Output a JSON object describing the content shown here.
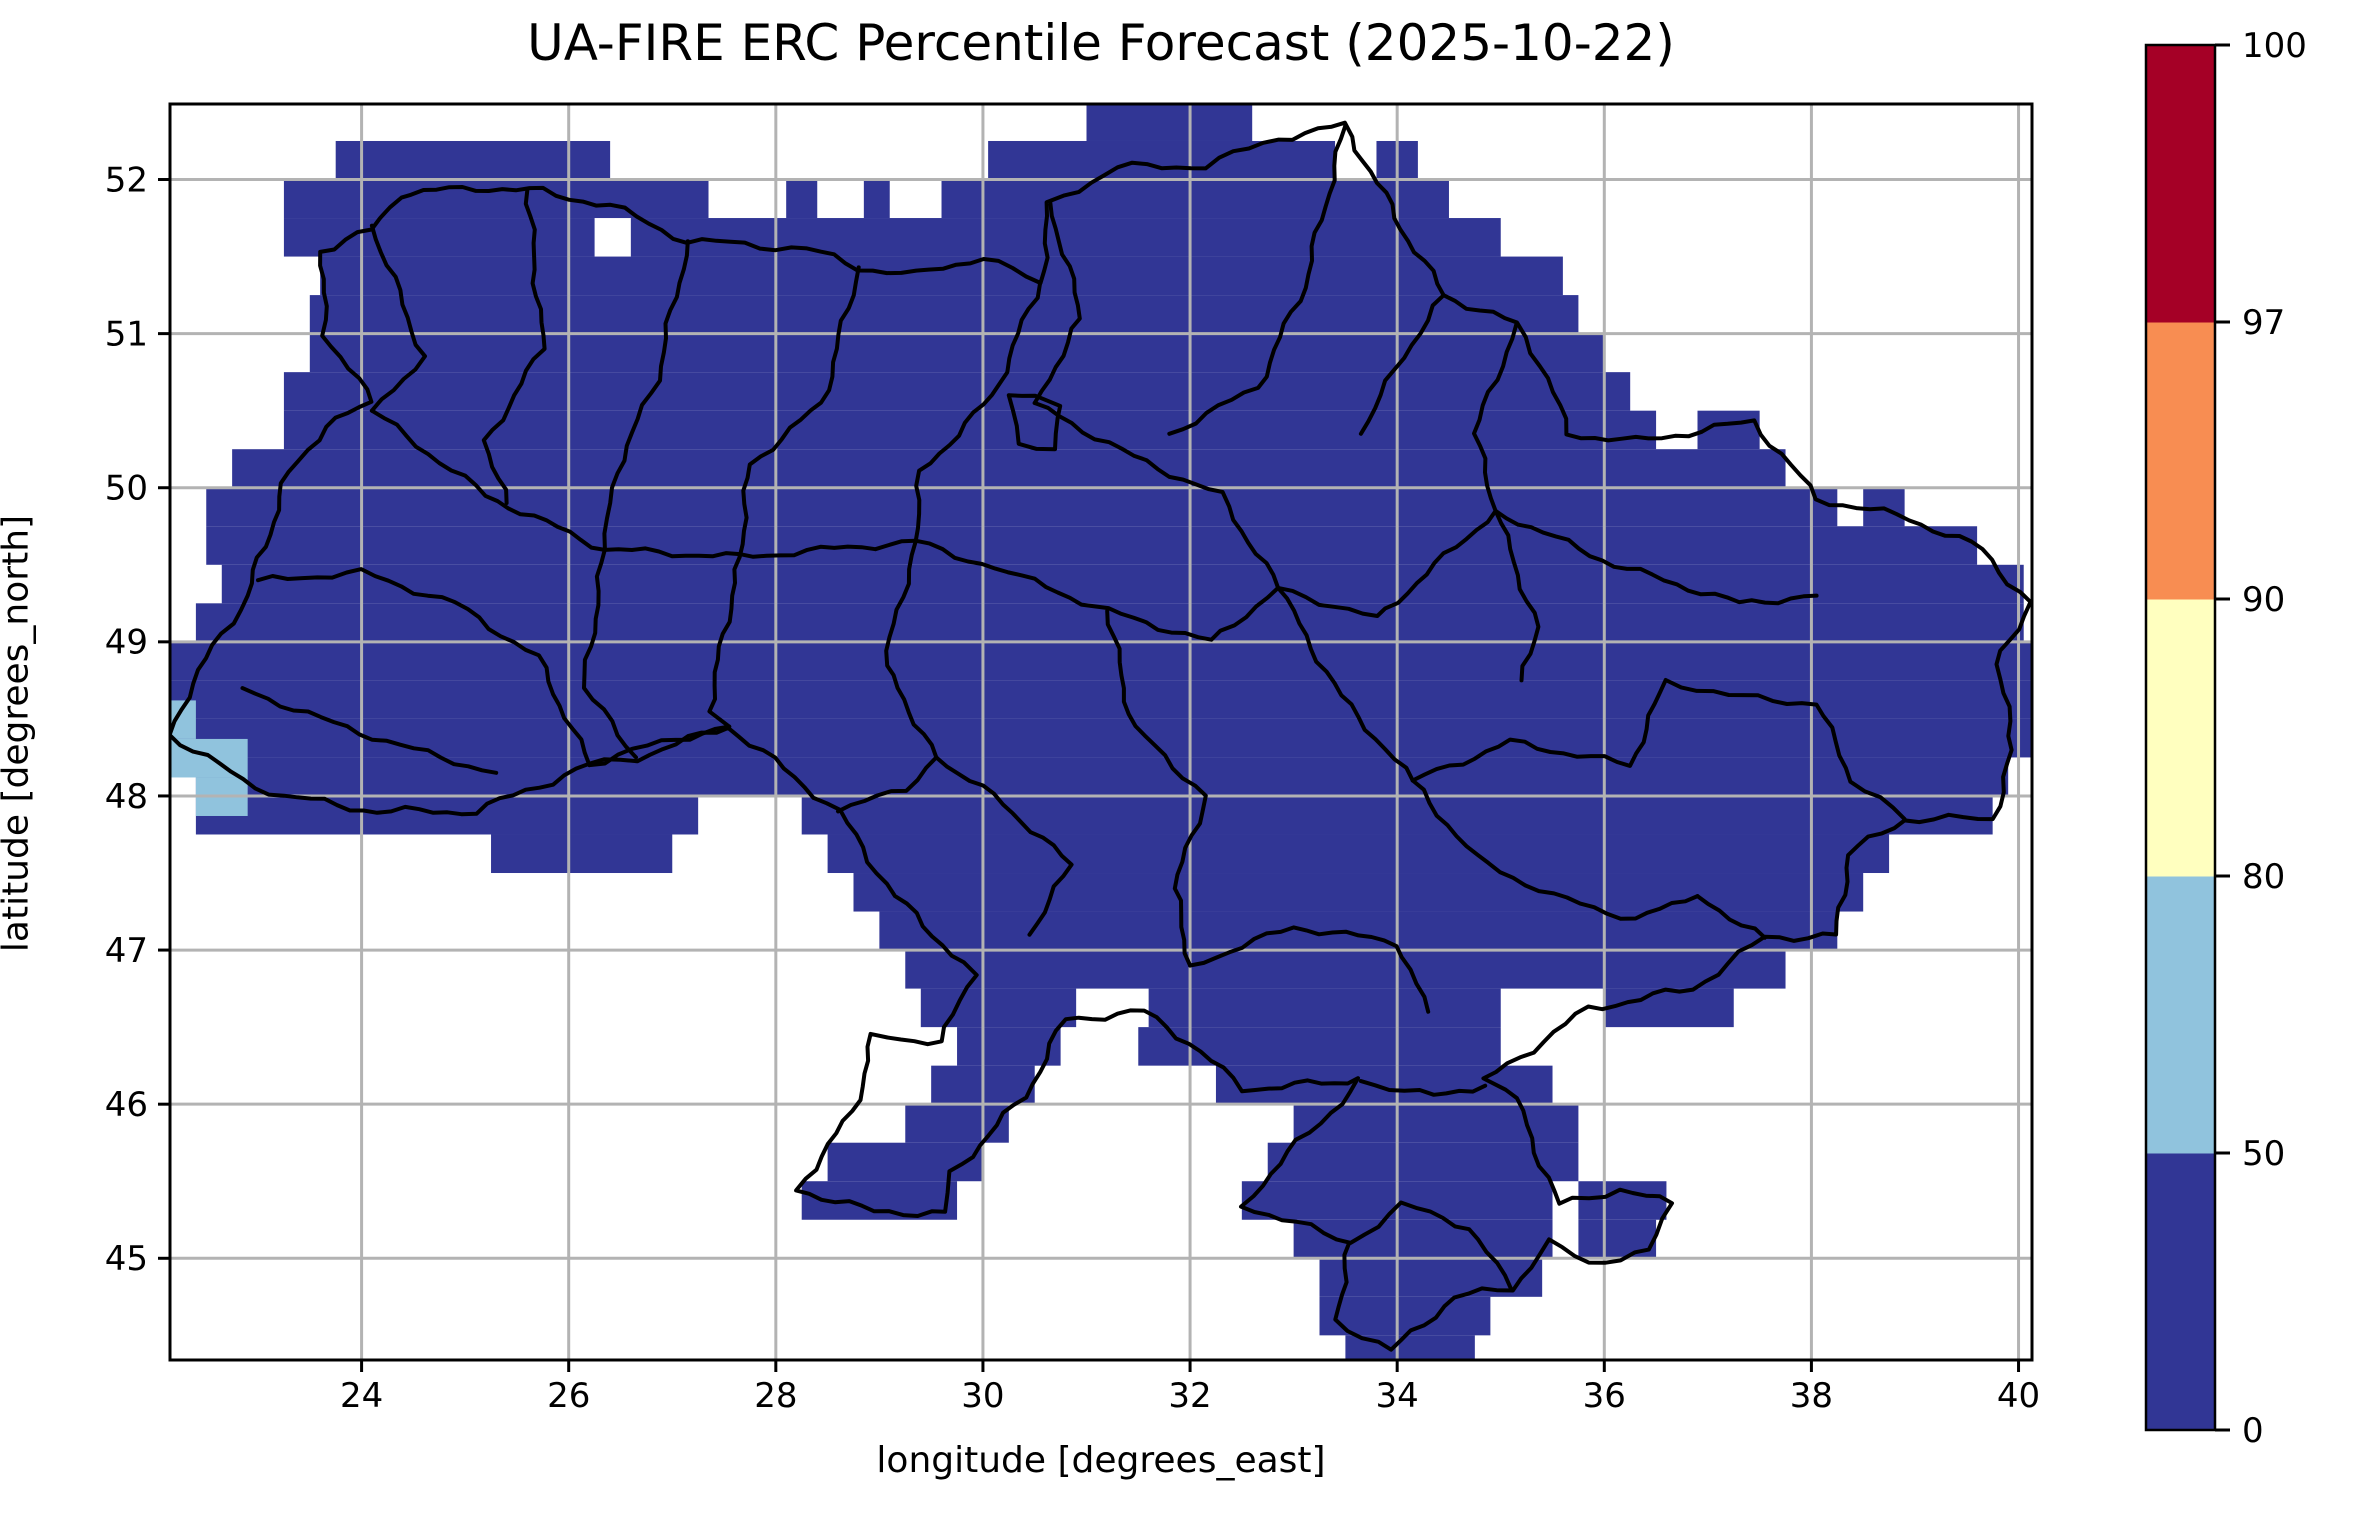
{
  "title": "UA-FIRE ERC Percentile Forecast (2025-10-22)",
  "axes": {
    "xlabel": "longitude [degrees_east]",
    "ylabel": "latitude [degrees_north]",
    "x_ticks": [
      24,
      26,
      28,
      30,
      32,
      34,
      36,
      38,
      40
    ],
    "y_ticks": [
      45,
      46,
      47,
      48,
      49,
      50,
      51,
      52
    ],
    "extent": {
      "lon_min": 22.15,
      "lon_max": 40.13,
      "lat_min": 44.34,
      "lat_max": 52.49
    }
  },
  "colorbar": {
    "bounds": [
      0,
      50,
      80,
      90,
      97,
      100
    ],
    "tick_labels": [
      "0",
      "50",
      "80",
      "90",
      "97",
      "100"
    ],
    "segment_colors": [
      "#313695",
      "#90c3dd",
      "#ffffbf",
      "#f88d52",
      "#a50026"
    ]
  },
  "colors": {
    "background": "#ffffff",
    "gridline": "#b3b3b3",
    "boundary": "#000000",
    "spine": "#000000",
    "fill_dominant": "#313695",
    "fill_low": "#90c3dd"
  },
  "chart_data": {
    "type": "heatmap",
    "title": "UA-FIRE ERC Percentile Forecast (2025-10-22)",
    "xlabel": "longitude [degrees_east]",
    "ylabel": "latitude [degrees_north]",
    "x_range": [
      22.15,
      40.13
    ],
    "y_range": [
      44.34,
      52.49
    ],
    "x_ticks": [
      24,
      26,
      28,
      30,
      32,
      34,
      36,
      38,
      40
    ],
    "y_ticks": [
      45,
      46,
      47,
      48,
      49,
      50,
      51,
      52
    ],
    "grid": true,
    "legend_position": "right-colorbar",
    "colorbar_bounds": [
      0,
      50,
      80,
      90,
      97,
      100
    ],
    "colorbar_colors": [
      "#313695",
      "#90c3dd",
      "#ffffbf",
      "#f88d52",
      "#a50026"
    ],
    "values_note": "Gridded (~0.25 deg) ERC percentile forecast over Ukraine. Every cell lies in the 0-50 percentile class (dark blue) except a small cluster in the far west near 22.15-22.9E, 47.87-48.62N which lies in the 50-80 class (light blue).",
    "fill_rows": [
      [
        52.5,
        52.25,
        [
          [
            31.0,
            32.6
          ]
        ]
      ],
      [
        52.25,
        52.0,
        [
          [
            23.75,
            26.4
          ],
          [
            30.05,
            33.4
          ],
          [
            33.8,
            34.2
          ]
        ]
      ],
      [
        52.0,
        51.75,
        [
          [
            23.25,
            27.35
          ],
          [
            28.1,
            28.4
          ],
          [
            28.85,
            29.1
          ],
          [
            29.6,
            34.5
          ]
        ]
      ],
      [
        51.75,
        51.5,
        [
          [
            23.25,
            26.25
          ],
          [
            26.6,
            35.0
          ]
        ]
      ],
      [
        51.5,
        51.25,
        [
          [
            23.6,
            35.6
          ]
        ]
      ],
      [
        51.25,
        51.0,
        [
          [
            23.5,
            35.75
          ]
        ]
      ],
      [
        51.0,
        50.75,
        [
          [
            23.5,
            36.0
          ]
        ]
      ],
      [
        50.75,
        50.5,
        [
          [
            23.25,
            36.25
          ]
        ]
      ],
      [
        50.5,
        50.25,
        [
          [
            23.25,
            36.5
          ],
          [
            36.9,
            37.5
          ]
        ]
      ],
      [
        50.25,
        50.0,
        [
          [
            22.75,
            37.75
          ]
        ]
      ],
      [
        50.0,
        49.75,
        [
          [
            22.5,
            38.25
          ],
          [
            38.5,
            38.9
          ]
        ]
      ],
      [
        49.75,
        49.5,
        [
          [
            22.5,
            39.6
          ]
        ]
      ],
      [
        49.5,
        49.25,
        [
          [
            22.65,
            40.05
          ]
        ]
      ],
      [
        49.25,
        49.0,
        [
          [
            22.4,
            40.05
          ]
        ]
      ],
      [
        49.0,
        48.75,
        [
          [
            22.15,
            40.13
          ]
        ]
      ],
      [
        48.75,
        48.5,
        [
          [
            22.15,
            40.13
          ]
        ]
      ],
      [
        48.5,
        48.25,
        [
          [
            22.15,
            40.13
          ]
        ]
      ],
      [
        48.25,
        48.0,
        [
          [
            22.4,
            39.9
          ]
        ]
      ],
      [
        48.0,
        47.75,
        [
          [
            22.4,
            27.25
          ],
          [
            28.25,
            39.75
          ]
        ]
      ],
      [
        47.75,
        47.5,
        [
          [
            25.25,
            27.0
          ],
          [
            28.5,
            38.75
          ]
        ]
      ],
      [
        47.5,
        47.25,
        [
          [
            28.75,
            38.5
          ]
        ]
      ],
      [
        47.25,
        47.0,
        [
          [
            29.0,
            38.25
          ]
        ]
      ],
      [
        47.0,
        46.75,
        [
          [
            29.25,
            37.75
          ]
        ]
      ],
      [
        46.75,
        46.5,
        [
          [
            29.4,
            30.9
          ],
          [
            31.6,
            35.0
          ],
          [
            36.0,
            37.25
          ]
        ]
      ],
      [
        46.5,
        46.25,
        [
          [
            29.75,
            30.75
          ],
          [
            31.5,
            35.0
          ]
        ]
      ],
      [
        46.25,
        46.0,
        [
          [
            29.5,
            30.5
          ],
          [
            32.25,
            35.5
          ]
        ]
      ],
      [
        46.0,
        45.75,
        [
          [
            29.25,
            30.25
          ],
          [
            33.0,
            35.75
          ]
        ]
      ],
      [
        45.75,
        45.5,
        [
          [
            28.5,
            30.0
          ],
          [
            32.75,
            35.75
          ]
        ]
      ],
      [
        45.5,
        45.25,
        [
          [
            28.25,
            29.75
          ],
          [
            32.5,
            35.5
          ],
          [
            35.75,
            36.6
          ]
        ]
      ],
      [
        45.25,
        45.0,
        [
          [
            33.0,
            35.5
          ],
          [
            35.75,
            36.5
          ]
        ]
      ],
      [
        45.0,
        44.75,
        [
          [
            33.25,
            35.4
          ]
        ]
      ],
      [
        44.75,
        44.5,
        [
          [
            33.25,
            34.9
          ]
        ]
      ],
      [
        44.5,
        44.34,
        [
          [
            33.5,
            34.75
          ]
        ]
      ]
    ],
    "low_percentile_cells": [
      [
        22.15,
        22.4,
        48.37,
        48.62
      ],
      [
        22.15,
        22.9,
        48.12,
        48.37
      ],
      [
        22.4,
        22.9,
        47.87,
        48.12
      ]
    ],
    "national_outline": [
      [
        23.6,
        51.53
      ],
      [
        24.1,
        51.67
      ],
      [
        24.35,
        51.9
      ],
      [
        25.1,
        51.95
      ],
      [
        25.75,
        51.92
      ],
      [
        26.4,
        51.83
      ],
      [
        27.15,
        51.6
      ],
      [
        27.7,
        51.58
      ],
      [
        28.3,
        51.55
      ],
      [
        28.8,
        51.43
      ],
      [
        29.35,
        51.38
      ],
      [
        30.0,
        51.5
      ],
      [
        30.55,
        51.32
      ],
      [
        30.65,
        51.85
      ],
      [
        31.3,
        52.08
      ],
      [
        32.15,
        52.09
      ],
      [
        32.85,
        52.27
      ],
      [
        33.5,
        52.35
      ],
      [
        34.05,
        51.68
      ],
      [
        34.45,
        51.25
      ],
      [
        35.15,
        51.06
      ],
      [
        35.4,
        50.8
      ],
      [
        35.65,
        50.35
      ],
      [
        36.3,
        50.3
      ],
      [
        37.45,
        50.43
      ],
      [
        38.05,
        49.93
      ],
      [
        38.95,
        49.8
      ],
      [
        39.65,
        49.6
      ],
      [
        40.1,
        49.25
      ],
      [
        39.8,
        48.85
      ],
      [
        39.95,
        48.3
      ],
      [
        39.75,
        47.85
      ],
      [
        38.9,
        47.85
      ],
      [
        38.35,
        47.62
      ],
      [
        38.25,
        47.1
      ],
      [
        37.55,
        47.08
      ],
      [
        36.85,
        46.75
      ],
      [
        35.85,
        46.62
      ],
      [
        34.85,
        46.15
      ],
      [
        35.05,
        46.1
      ],
      [
        35.2,
        45.95
      ],
      [
        35.55,
        45.35
      ],
      [
        36.15,
        45.45
      ],
      [
        36.65,
        45.35
      ],
      [
        36.45,
        45.05
      ],
      [
        35.85,
        44.97
      ],
      [
        35.45,
        45.1
      ],
      [
        35.1,
        44.8
      ],
      [
        34.55,
        44.75
      ],
      [
        33.95,
        44.4
      ],
      [
        33.4,
        44.6
      ],
      [
        33.55,
        45.1
      ],
      [
        32.5,
        45.35
      ],
      [
        33.05,
        45.75
      ],
      [
        33.65,
        46.15
      ],
      [
        32.5,
        46.1
      ],
      [
        32.0,
        46.4
      ],
      [
        31.55,
        46.6
      ],
      [
        30.8,
        46.55
      ],
      [
        30.4,
        46.05
      ],
      [
        29.7,
        45.55
      ],
      [
        29.65,
        45.3
      ],
      [
        28.95,
        45.3
      ],
      [
        28.2,
        45.45
      ],
      [
        28.75,
        45.95
      ],
      [
        28.95,
        46.45
      ],
      [
        29.6,
        46.4
      ],
      [
        29.9,
        46.85
      ],
      [
        29.15,
        47.35
      ],
      [
        28.6,
        47.9
      ],
      [
        27.55,
        48.45
      ],
      [
        26.65,
        48.25
      ],
      [
        26.2,
        48.2
      ],
      [
        25.1,
        47.9
      ],
      [
        24.15,
        47.9
      ],
      [
        23.25,
        48.0
      ],
      [
        22.85,
        48.1
      ],
      [
        22.15,
        48.4
      ],
      [
        22.3,
        48.65
      ],
      [
        22.65,
        49.05
      ],
      [
        22.9,
        49.3
      ],
      [
        23.3,
        50.1
      ],
      [
        23.65,
        50.4
      ],
      [
        24.1,
        50.55
      ],
      [
        23.65,
        51.0
      ],
      [
        23.6,
        51.53
      ]
    ],
    "internal_boundaries": [
      [
        [
          24.1,
          51.7
        ],
        [
          24.6,
          50.85
        ],
        [
          24.1,
          50.5
        ]
      ],
      [
        [
          25.6,
          51.93
        ],
        [
          25.75,
          50.9
        ],
        [
          25.2,
          50.3
        ],
        [
          25.4,
          49.9
        ]
      ],
      [
        [
          27.15,
          51.6
        ],
        [
          26.85,
          50.7
        ],
        [
          26.45,
          50.1
        ],
        [
          26.35,
          49.6
        ]
      ],
      [
        [
          28.8,
          51.43
        ],
        [
          28.45,
          50.55
        ],
        [
          27.75,
          50.15
        ],
        [
          27.65,
          49.55
        ]
      ],
      [
        [
          30.55,
          51.32
        ],
        [
          30.1,
          50.6
        ],
        [
          29.4,
          50.1
        ],
        [
          29.35,
          49.65
        ]
      ],
      [
        [
          30.65,
          51.85
        ],
        [
          30.95,
          51.1
        ],
        [
          30.5,
          50.55
        ]
      ],
      [
        [
          33.5,
          52.35
        ],
        [
          33.1,
          51.3
        ],
        [
          32.65,
          50.65
        ],
        [
          31.8,
          50.35
        ]
      ],
      [
        [
          34.45,
          51.25
        ],
        [
          34.05,
          50.85
        ],
        [
          33.65,
          50.35
        ]
      ],
      [
        [
          35.15,
          51.06
        ],
        [
          34.75,
          50.35
        ],
        [
          34.95,
          49.85
        ]
      ],
      [
        [
          24.1,
          50.5
        ],
        [
          25.2,
          49.95
        ],
        [
          26.35,
          49.6
        ],
        [
          27.65,
          49.55
        ],
        [
          29.35,
          49.65
        ],
        [
          30.25,
          49.45
        ]
      ],
      [
        [
          23.0,
          49.4
        ],
        [
          24.0,
          49.45
        ],
        [
          24.9,
          49.25
        ],
        [
          25.7,
          48.9
        ],
        [
          26.2,
          48.2
        ]
      ],
      [
        [
          22.85,
          48.7
        ],
        [
          23.6,
          48.5
        ],
        [
          24.5,
          48.3
        ],
        [
          25.3,
          48.15
        ]
      ],
      [
        [
          26.35,
          49.6
        ],
        [
          26.15,
          48.7
        ],
        [
          26.65,
          48.25
        ]
      ],
      [
        [
          27.65,
          49.55
        ],
        [
          27.35,
          48.55
        ],
        [
          27.55,
          48.45
        ]
      ],
      [
        [
          29.35,
          49.65
        ],
        [
          29.05,
          48.85
        ],
        [
          29.55,
          48.25
        ]
      ],
      [
        [
          30.25,
          49.45
        ],
        [
          31.2,
          49.2
        ],
        [
          32.2,
          49.0
        ],
        [
          32.85,
          49.35
        ]
      ],
      [
        [
          30.5,
          50.55
        ],
        [
          31.45,
          50.2
        ],
        [
          32.3,
          49.95
        ],
        [
          32.85,
          49.35
        ]
      ],
      [
        [
          32.85,
          49.35
        ],
        [
          33.8,
          49.15
        ],
        [
          34.95,
          49.85
        ]
      ],
      [
        [
          34.95,
          49.85
        ],
        [
          36.1,
          49.5
        ],
        [
          37.3,
          49.25
        ],
        [
          38.05,
          49.3
        ]
      ],
      [
        [
          29.55,
          48.25
        ],
        [
          30.2,
          47.95
        ],
        [
          30.85,
          47.55
        ],
        [
          30.45,
          47.1
        ]
      ],
      [
        [
          31.2,
          49.2
        ],
        [
          31.45,
          48.45
        ],
        [
          32.15,
          48.0
        ],
        [
          31.85,
          47.4
        ],
        [
          32.0,
          46.9
        ]
      ],
      [
        [
          32.85,
          49.35
        ],
        [
          33.45,
          48.65
        ],
        [
          34.15,
          48.1
        ]
      ],
      [
        [
          34.15,
          48.1
        ],
        [
          35.1,
          48.35
        ],
        [
          36.25,
          48.2
        ],
        [
          36.6,
          48.75
        ],
        [
          37.2,
          48.65
        ],
        [
          38.05,
          48.6
        ],
        [
          38.4,
          48.1
        ],
        [
          38.9,
          47.85
        ]
      ],
      [
        [
          34.15,
          48.1
        ],
        [
          34.75,
          47.6
        ],
        [
          35.5,
          47.35
        ],
        [
          36.3,
          47.2
        ],
        [
          36.9,
          47.35
        ]
      ],
      [
        [
          32.0,
          46.9
        ],
        [
          33.0,
          47.15
        ],
        [
          34.0,
          47.05
        ],
        [
          34.3,
          46.6
        ]
      ],
      [
        [
          33.65,
          46.15
        ],
        [
          34.35,
          46.05
        ],
        [
          34.85,
          46.12
        ]
      ],
      [
        [
          26.2,
          48.2
        ],
        [
          26.9,
          48.35
        ],
        [
          27.55,
          48.45
        ]
      ],
      [
        [
          28.6,
          47.9
        ],
        [
          29.25,
          48.05
        ],
        [
          29.55,
          48.25
        ]
      ],
      [
        [
          30.25,
          50.6
        ],
        [
          30.75,
          50.55
        ],
        [
          30.7,
          50.25
        ],
        [
          30.35,
          50.3
        ],
        [
          30.25,
          50.6
        ]
      ],
      [
        [
          35.2,
          48.75
        ],
        [
          35.35,
          49.1
        ],
        [
          34.95,
          49.85
        ]
      ],
      [
        [
          36.9,
          47.35
        ],
        [
          37.55,
          47.08
        ]
      ],
      [
        [
          33.55,
          45.1
        ],
        [
          34.05,
          45.35
        ],
        [
          34.7,
          45.2
        ],
        [
          35.1,
          44.8
        ]
      ]
    ]
  }
}
